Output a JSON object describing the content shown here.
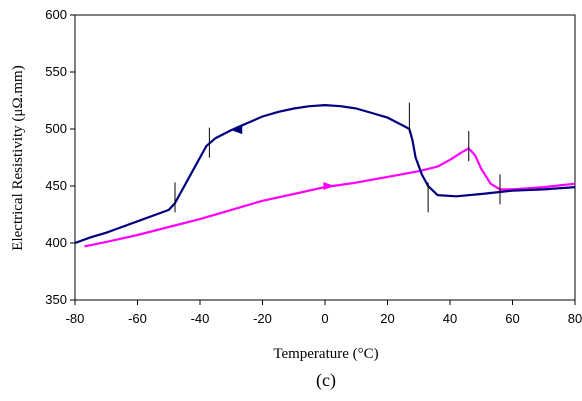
{
  "chart_data": {
    "type": "line",
    "xlabel": "Temperature (°C)",
    "ylabel": "Electrical Resistivity (μΩ.mm)",
    "caption": "(c)",
    "xlim": [
      -80,
      80
    ],
    "ylim": [
      350,
      600
    ],
    "x_ticks": [
      "-80",
      "-60",
      "-40",
      "-20",
      "0",
      "20",
      "40",
      "60",
      "80"
    ],
    "y_ticks": [
      "350",
      "400",
      "450",
      "500",
      "550",
      "600"
    ],
    "grid": false,
    "legend": "none",
    "series": [
      {
        "color": "#ff00ff",
        "direction": "heating",
        "points": [
          [
            -77,
            397
          ],
          [
            -70,
            401
          ],
          [
            -60,
            407
          ],
          [
            -50,
            414
          ],
          [
            -40,
            421
          ],
          [
            -30,
            429
          ],
          [
            -20,
            437
          ],
          [
            -10,
            443
          ],
          [
            0,
            449
          ],
          [
            10,
            453
          ],
          [
            20,
            458
          ],
          [
            30,
            463
          ],
          [
            36,
            467
          ],
          [
            40,
            473
          ],
          [
            44,
            480
          ],
          [
            46,
            483
          ],
          [
            48,
            477
          ],
          [
            50,
            465
          ],
          [
            53,
            452
          ],
          [
            56,
            447
          ],
          [
            60,
            447
          ],
          [
            70,
            449
          ],
          [
            80,
            452
          ]
        ],
        "arrow_at": [
          3,
          450
        ]
      },
      {
        "color": "#000080",
        "direction": "cooling",
        "points": [
          [
            80,
            449
          ],
          [
            70,
            447
          ],
          [
            60,
            446
          ],
          [
            50,
            443
          ],
          [
            42,
            441
          ],
          [
            36,
            442
          ],
          [
            33,
            450
          ],
          [
            31,
            460
          ],
          [
            29,
            475
          ],
          [
            28,
            490
          ],
          [
            27,
            500
          ],
          [
            25,
            503
          ],
          [
            20,
            510
          ],
          [
            15,
            514
          ],
          [
            10,
            518
          ],
          [
            5,
            520
          ],
          [
            0,
            521
          ],
          [
            -5,
            520
          ],
          [
            -10,
            518
          ],
          [
            -15,
            515
          ],
          [
            -20,
            511
          ],
          [
            -25,
            505
          ],
          [
            -30,
            499
          ],
          [
            -35,
            492
          ],
          [
            -38,
            485
          ],
          [
            -41,
            470
          ],
          [
            -44,
            455
          ],
          [
            -47,
            440
          ],
          [
            -48,
            435
          ],
          [
            -50,
            429
          ],
          [
            -55,
            424
          ],
          [
            -60,
            419
          ],
          [
            -65,
            414
          ],
          [
            -70,
            409
          ],
          [
            -75,
            405
          ],
          [
            -80,
            400
          ]
        ],
        "arrow_at": [
          -30,
          499
        ]
      }
    ],
    "markers": [
      [
        -48,
        440
      ],
      [
        -37,
        488
      ],
      [
        27,
        510
      ],
      [
        33,
        440
      ],
      [
        46,
        485
      ],
      [
        56,
        447
      ]
    ]
  }
}
